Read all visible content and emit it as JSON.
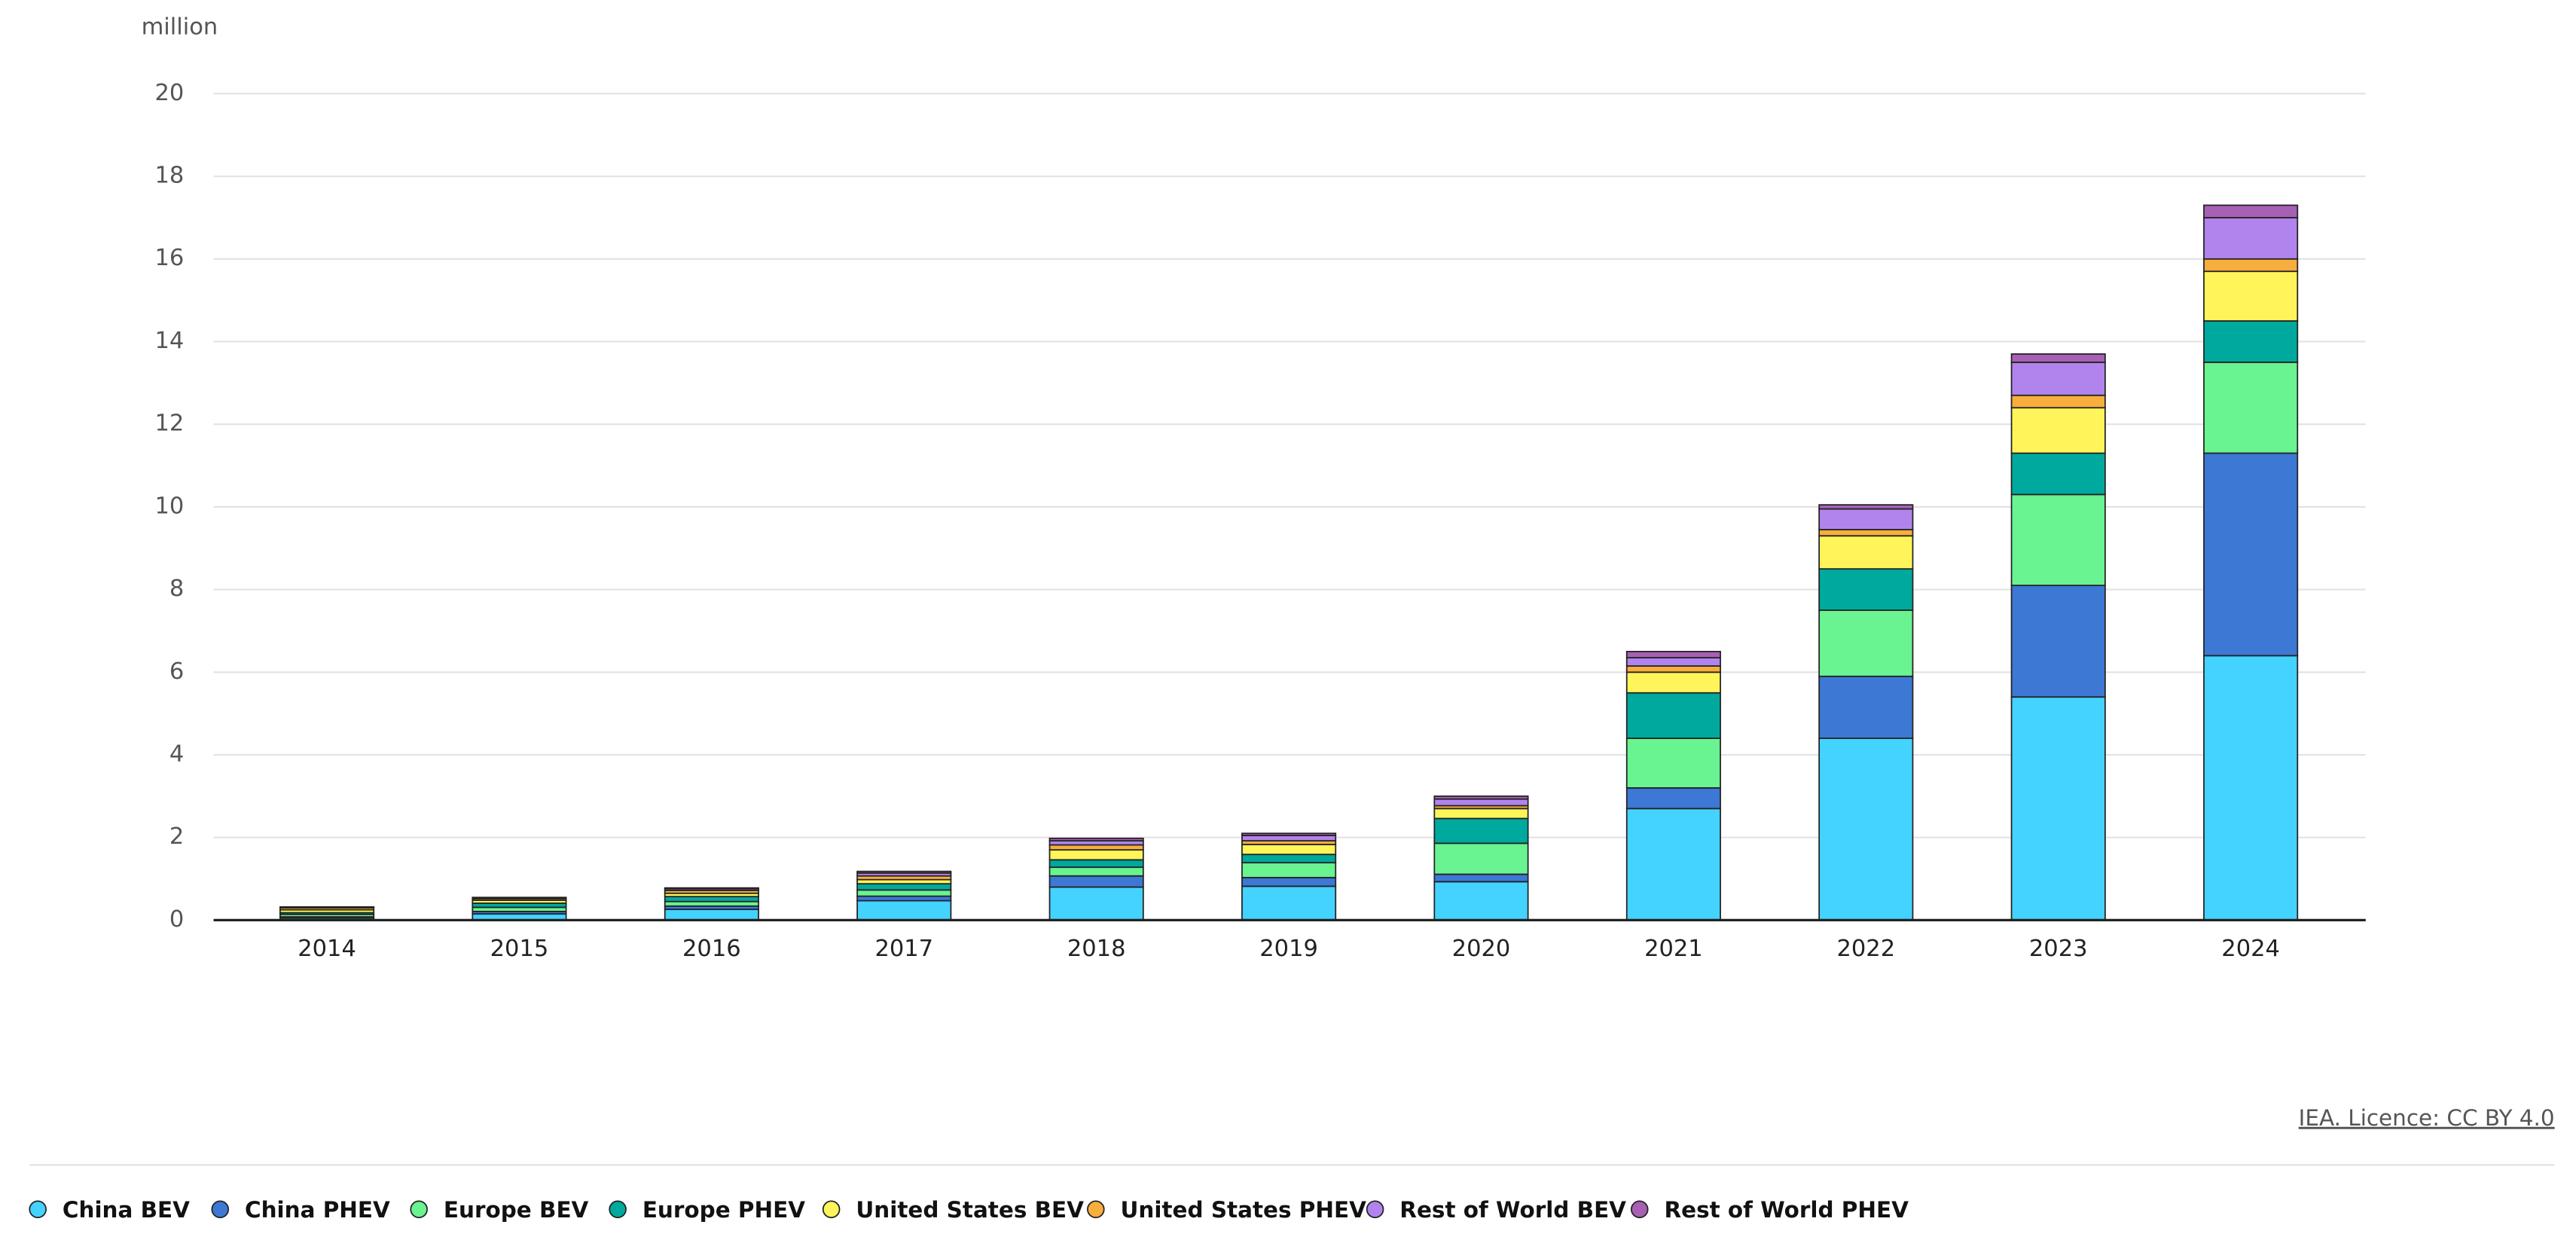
{
  "chart_data": {
    "type": "stacked_bar",
    "unit": "million",
    "source": "IEA. Licence: CC BY 4.0",
    "categories": [
      "2014",
      "2015",
      "2016",
      "2017",
      "2018",
      "2019",
      "2020",
      "2021",
      "2022",
      "2023",
      "2024"
    ],
    "series": [
      {
        "name": "China BEV",
        "color": "#44d2ff",
        "values": [
          0.05,
          0.15,
          0.26,
          0.47,
          0.8,
          0.82,
          0.93,
          2.7,
          4.4,
          5.4,
          6.4
        ]
      },
      {
        "name": "China PHEV",
        "color": "#3c78d4",
        "values": [
          0.03,
          0.06,
          0.08,
          0.11,
          0.27,
          0.21,
          0.18,
          0.5,
          1.5,
          2.7,
          4.9
        ]
      },
      {
        "name": "Europe BEV",
        "color": "#69f391",
        "values": [
          0.06,
          0.1,
          0.11,
          0.15,
          0.21,
          0.36,
          0.75,
          1.2,
          1.6,
          2.2,
          2.2
        ]
      },
      {
        "name": "Europe PHEV",
        "color": "#00a99d",
        "values": [
          0.04,
          0.1,
          0.12,
          0.15,
          0.18,
          0.2,
          0.6,
          1.1,
          1.0,
          1.0,
          1.0
        ]
      },
      {
        "name": "United States BEV",
        "color": "#fff459",
        "values": [
          0.07,
          0.07,
          0.08,
          0.1,
          0.24,
          0.24,
          0.24,
          0.5,
          0.8,
          1.1,
          1.2
        ]
      },
      {
        "name": "United States PHEV",
        "color": "#f8ae3c",
        "values": [
          0.05,
          0.04,
          0.07,
          0.09,
          0.12,
          0.09,
          0.07,
          0.15,
          0.15,
          0.3,
          0.3
        ]
      },
      {
        "name": "Rest of World BEV",
        "color": "#b084ec",
        "values": [
          0.01,
          0.02,
          0.04,
          0.07,
          0.1,
          0.13,
          0.16,
          0.2,
          0.5,
          0.8,
          1.0
        ]
      },
      {
        "name": "Rest of World PHEV",
        "color": "#a760b4",
        "values": [
          0.01,
          0.01,
          0.02,
          0.04,
          0.06,
          0.05,
          0.07,
          0.15,
          0.1,
          0.2,
          0.3
        ]
      }
    ],
    "ylim": [
      0,
      20
    ],
    "yticks": [
      0,
      2,
      4,
      6,
      8,
      10,
      12,
      14,
      16,
      18,
      20
    ],
    "grid": true
  }
}
